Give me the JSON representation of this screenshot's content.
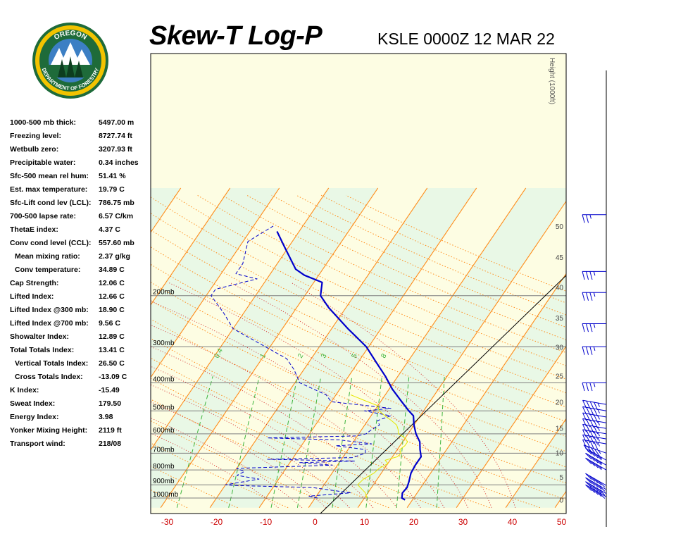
{
  "header": {
    "title": "Skew-T Log-P",
    "station": "KSLE 0000Z 12 MAR 22"
  },
  "logo": {
    "text_top": "OREGON",
    "text_bottom": "DEPARTMENT OF FORESTRY",
    "colors": {
      "ring": "#1e6b3a",
      "gold": "#f2c300",
      "sky": "#3c7fc4"
    }
  },
  "indices": [
    {
      "label": "1000-500 mb thick:",
      "value": "5497.00 m",
      "indent": false
    },
    {
      "label": "Freezing level:",
      "value": "8727.74 ft",
      "indent": false
    },
    {
      "label": "Wetbulb zero:",
      "value": "3207.93 ft",
      "indent": false
    },
    {
      "label": "Precipitable water:",
      "value": "0.34 inches",
      "indent": false
    },
    {
      "label": "Sfc-500 mean rel hum:",
      "value": "51.41 %",
      "indent": false
    },
    {
      "label": "Est. max temperature:",
      "value": "19.79 C",
      "indent": false
    },
    {
      "label": "Sfc-Lift cond lev (LCL):",
      "value": "786.75 mb",
      "indent": false
    },
    {
      "label": "700-500 lapse rate:",
      "value": "6.57 C/km",
      "indent": false
    },
    {
      "label": "ThetaE index:",
      "value": "4.37 C",
      "indent": false
    },
    {
      "label": "Conv cond level (CCL):",
      "value": "557.60 mb",
      "indent": false
    },
    {
      "label": "Mean mixing ratio:",
      "value": "2.37 g/kg",
      "indent": true
    },
    {
      "label": "Conv temperature:",
      "value": "34.89 C",
      "indent": true
    },
    {
      "label": "Cap Strength:",
      "value": "12.06 C",
      "indent": false
    },
    {
      "label": "Lifted Index:",
      "value": "12.66 C",
      "indent": false
    },
    {
      "label": "Lifted Index @300 mb:",
      "value": "18.90 C",
      "indent": false
    },
    {
      "label": "Lifted Index @700 mb:",
      "value": "9.56 C",
      "indent": false
    },
    {
      "label": "Showalter Index:",
      "value": "12.89 C",
      "indent": false
    },
    {
      "label": "Total Totals Index:",
      "value": "13.41 C",
      "indent": false
    },
    {
      "label": "Vertical Totals Index:",
      "value": "26.50 C",
      "indent": true
    },
    {
      "label": "Cross Totals Index:",
      "value": "-13.09 C",
      "indent": true
    },
    {
      "label": "K Index:",
      "value": "-15.49",
      "indent": false
    },
    {
      "label": "Sweat Index:",
      "value": "179.50",
      "indent": false
    },
    {
      "label": "Energy Index:",
      "value": "3.98",
      "indent": false
    },
    {
      "label": "Yonker Mixing Height:",
      "value": "2119 ft",
      "indent": false
    },
    {
      "label": "Transport wind:",
      "value": "218/08",
      "indent": false
    }
  ],
  "chart_data": {
    "type": "line",
    "title": "Skew-T Log-P",
    "subtitle": "KSLE 0000Z 12 MAR 22",
    "xlabel": "",
    "ylabel": "",
    "x_ticks": [
      -30,
      -20,
      -10,
      0,
      10,
      20,
      30,
      40,
      50
    ],
    "xlim": [
      -30,
      50
    ],
    "pressure_levels": [
      {
        "p": 200,
        "label": "200mb"
      },
      {
        "p": 300,
        "label": "300mb"
      },
      {
        "p": 400,
        "label": "400mb"
      },
      {
        "p": 500,
        "label": "500mb"
      },
      {
        "p": 600,
        "label": "600mb"
      },
      {
        "p": 700,
        "label": "700mb"
      },
      {
        "p": 800,
        "label": "800mb"
      },
      {
        "p": 900,
        "label": "900mb"
      },
      {
        "p": 1000,
        "label": "1000mb"
      }
    ],
    "height_axis": {
      "label": "Height (1000ft)",
      "ticks": [
        {
          "h": 0,
          "p": 1015
        },
        {
          "h": 5,
          "p": 846
        },
        {
          "h": 10,
          "p": 697
        },
        {
          "h": 15,
          "p": 573
        },
        {
          "h": 20,
          "p": 466
        },
        {
          "h": 25,
          "p": 378
        },
        {
          "h": 30,
          "p": 301
        },
        {
          "h": 35,
          "p": 238
        },
        {
          "h": 40,
          "p": 187
        },
        {
          "h": 45,
          "p": 147
        },
        {
          "h": 50,
          "p": 115
        }
      ]
    },
    "mixing_ratio_labels": [
      "0.4",
      "1",
      "2",
      "3",
      "5",
      "8"
    ],
    "series": [
      {
        "name": "",
        "kind": "environment-profile",
        "color": "#0000cc",
        "style": "solid",
        "points": [
          [
            1015,
            18.5
          ],
          [
            1000,
            17.6
          ],
          [
            960,
            17.0
          ],
          [
            920,
            17.2
          ],
          [
            880,
            16.8
          ],
          [
            820,
            16.0
          ],
          [
            770,
            15.8
          ],
          [
            720,
            15.8
          ],
          [
            680,
            14.6
          ],
          [
            640,
            13.5
          ],
          [
            600,
            11.6
          ],
          [
            560,
            10.0
          ],
          [
            520,
            8.6
          ],
          [
            500,
            7.0
          ],
          [
            460,
            3.9
          ],
          [
            420,
            0.6
          ],
          [
            380,
            -2.5
          ],
          [
            340,
            -6.3
          ],
          [
            300,
            -10.5
          ],
          [
            260,
            -16.7
          ],
          [
            220,
            -23.5
          ],
          [
            200,
            -26.8
          ],
          [
            180,
            -28.3
          ],
          [
            170,
            -32.9
          ],
          [
            162,
            -35.5
          ],
          [
            135,
            -41.0
          ],
          [
            120,
            -44.5
          ]
        ]
      },
      {
        "name": "",
        "kind": "dewpoint-profile",
        "color": "#0000cc",
        "style": "dashed",
        "points": [
          [
            1000,
            0.5
          ],
          [
            985,
            -1.5
          ],
          [
            960,
            6.5
          ],
          [
            920,
            -2.0
          ],
          [
            905,
            -18.0
          ],
          [
            900,
            -20.0
          ],
          [
            880,
            -17.0
          ],
          [
            860,
            -14.0
          ],
          [
            835,
            -19.0
          ],
          [
            810,
            -18.0
          ],
          [
            790,
            -20.0
          ],
          [
            770,
            -1.0
          ],
          [
            755,
            -8.0
          ],
          [
            745,
            3.0
          ],
          [
            735,
            -15.0
          ],
          [
            725,
            2.0
          ],
          [
            700,
            4.0
          ],
          [
            680,
            3.5
          ],
          [
            660,
            -3.0
          ],
          [
            650,
            4.0
          ],
          [
            630,
            -3.0
          ],
          [
            620,
            -18.0
          ],
          [
            610,
            0.0
          ],
          [
            600,
            1.5
          ],
          [
            580,
            2.0
          ],
          [
            560,
            3.0
          ],
          [
            540,
            2.0
          ],
          [
            520,
            4.0
          ],
          [
            500,
            -2.0
          ],
          [
            490,
            3.0
          ],
          [
            480,
            -2.0
          ],
          [
            465,
            -10.0
          ],
          [
            440,
            -12.0
          ],
          [
            400,
            -19.0
          ],
          [
            360,
            -22.0
          ],
          [
            330,
            -25.0
          ],
          [
            300,
            -31.0
          ],
          [
            260,
            -40.0
          ],
          [
            230,
            -44.0
          ],
          [
            200,
            -49.0
          ],
          [
            190,
            -49.0
          ],
          [
            175,
            -42.0
          ],
          [
            168,
            -47.0
          ],
          [
            155,
            -47.0
          ],
          [
            130,
            -49.0
          ],
          [
            115,
            -46.0
          ]
        ]
      },
      {
        "name": "",
        "kind": "lifted-parcel",
        "color": "#e6e600",
        "style": "solid",
        "points": [
          [
            1000,
            10.5
          ],
          [
            960,
            9.5
          ],
          [
            900,
            6.8
          ],
          [
            860,
            7.2
          ],
          [
            820,
            8.5
          ],
          [
            790,
            8.9
          ],
          [
            760,
            10.0
          ],
          [
            740,
            9.0
          ],
          [
            720,
            11.0
          ],
          [
            700,
            11.2
          ],
          [
            680,
            10.5
          ],
          [
            660,
            11.0
          ],
          [
            640,
            11.0
          ],
          [
            620,
            10.0
          ],
          [
            600,
            8.0
          ],
          [
            580,
            7.4
          ],
          [
            560,
            6.5
          ],
          [
            540,
            4.8
          ],
          [
            520,
            2.8
          ],
          [
            500,
            1.0
          ],
          [
            480,
            0.0
          ],
          [
            460,
            -3.5
          ],
          [
            440,
            -7.0
          ]
        ]
      }
    ],
    "wind_barbs": [
      {
        "p": 990,
        "dir": 300,
        "speed": 50
      },
      {
        "p": 965,
        "dir": 300,
        "speed": 50
      },
      {
        "p": 935,
        "dir": 300,
        "speed": 50
      },
      {
        "p": 905,
        "dir": 300,
        "speed": 50
      },
      {
        "p": 800,
        "dir": 300,
        "speed": 45
      },
      {
        "p": 770,
        "dir": 300,
        "speed": 45
      },
      {
        "p": 740,
        "dir": 300,
        "speed": 45
      },
      {
        "p": 700,
        "dir": 290,
        "speed": 45
      },
      {
        "p": 650,
        "dir": 280,
        "speed": 45
      },
      {
        "p": 625,
        "dir": 280,
        "speed": 45
      },
      {
        "p": 600,
        "dir": 280,
        "speed": 45
      },
      {
        "p": 575,
        "dir": 280,
        "speed": 45
      },
      {
        "p": 550,
        "dir": 280,
        "speed": 45
      },
      {
        "p": 525,
        "dir": 280,
        "speed": 45
      },
      {
        "p": 500,
        "dir": 280,
        "speed": 45
      },
      {
        "p": 475,
        "dir": 280,
        "speed": 45
      },
      {
        "p": 400,
        "dir": 270,
        "speed": 35
      },
      {
        "p": 300,
        "dir": 270,
        "speed": 35
      },
      {
        "p": 250,
        "dir": 270,
        "speed": 35
      },
      {
        "p": 195,
        "dir": 270,
        "speed": 35
      },
      {
        "p": 165,
        "dir": 270,
        "speed": 35
      },
      {
        "p": 105,
        "dir": 270,
        "speed": 25
      }
    ],
    "colors": {
      "background_band_a": "#e9f8e6",
      "background_band_b": "#fdfde3",
      "dry_adiabat": "#ff8c1a",
      "isotherm": "#ff8c1a",
      "moist_adiabat": "#d62020",
      "mixing_ratio": "#3cb43c",
      "pressure_line": "#7f7f7f",
      "reference_line": "#000000"
    }
  }
}
